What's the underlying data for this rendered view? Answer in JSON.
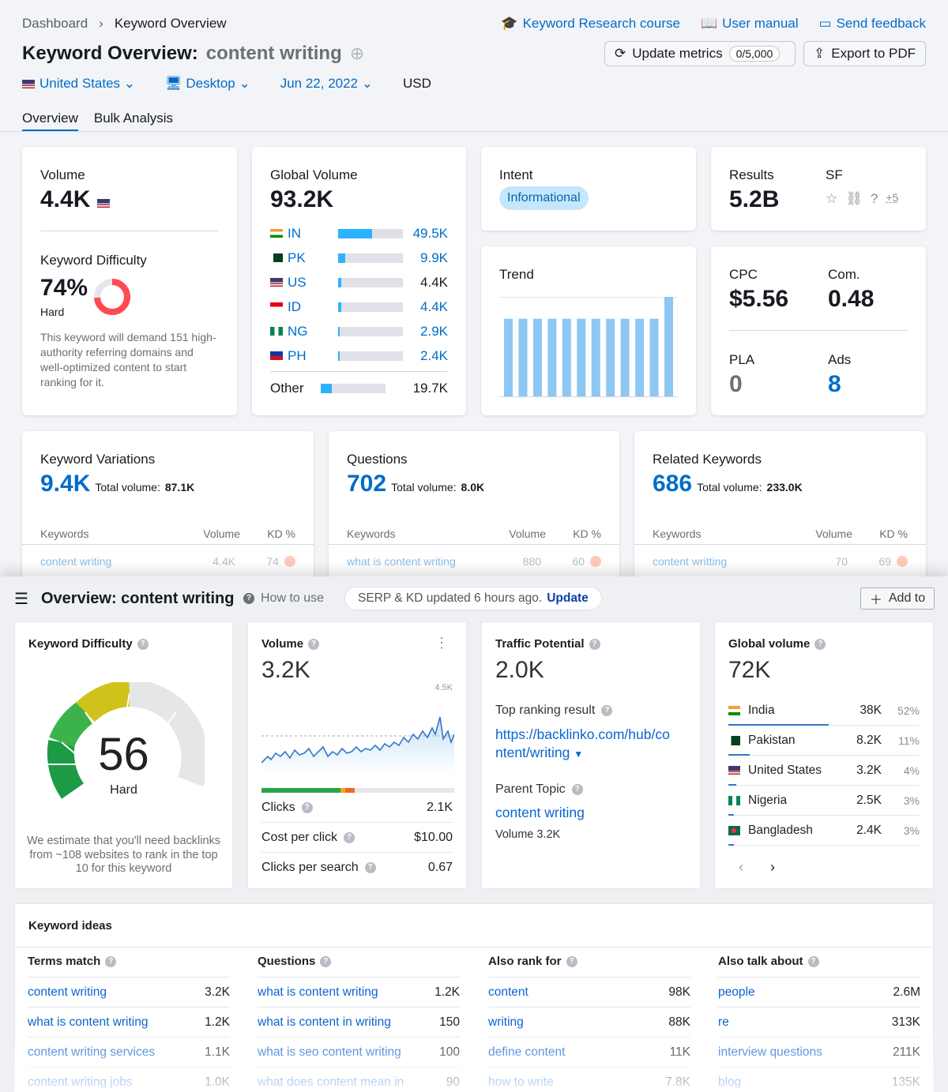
{
  "breadcrumb": {
    "home": "Dashboard",
    "current": "Keyword Overview"
  },
  "toplinks": {
    "course": "Keyword Research course",
    "manual": "User manual",
    "feedback": "Send feedback"
  },
  "title": {
    "label": "Keyword Overview:",
    "keyword": "content writing"
  },
  "buttons": {
    "update": "Update metrics",
    "update_count": "0/5,000",
    "export": "Export to PDF"
  },
  "filters": {
    "country": "United States",
    "device": "Desktop",
    "date": "Jun 22, 2022",
    "currency": "USD"
  },
  "tabs": [
    "Overview",
    "Bulk Analysis"
  ],
  "volume": {
    "label": "Volume",
    "value": "4.4K"
  },
  "kd": {
    "label": "Keyword Difficulty",
    "value": "74%",
    "level": "Hard",
    "percent": 74,
    "desc": "This keyword will demand 151 high-authority referring domains and well-optimized content to start ranking for it."
  },
  "global_volume": {
    "label": "Global Volume",
    "value": "93.2K",
    "rows": [
      {
        "cc": "IN",
        "v": "49.5K",
        "pct": 53
      },
      {
        "cc": "PK",
        "v": "9.9K",
        "pct": 11
      },
      {
        "cc": "US",
        "v": "4.4K",
        "pct": 5
      },
      {
        "cc": "ID",
        "v": "4.4K",
        "pct": 5
      },
      {
        "cc": "NG",
        "v": "2.9K",
        "pct": 3
      },
      {
        "cc": "PH",
        "v": "2.4K",
        "pct": 3
      }
    ],
    "other_label": "Other",
    "other_value": "19.7K",
    "other_pct": 21
  },
  "intent": {
    "label": "Intent",
    "value": "Informational"
  },
  "results": {
    "label": "Results",
    "value": "5.2B",
    "sf_label": "SF",
    "sf_more": "+5"
  },
  "trend": {
    "label": "Trend",
    "values": [
      0.78,
      0.78,
      0.78,
      0.78,
      0.78,
      0.78,
      0.78,
      0.78,
      0.78,
      0.78,
      0.78,
      1.0
    ]
  },
  "cpc": {
    "label": "CPC",
    "value": "$5.56",
    "com_label": "Com.",
    "com_value": "0.48",
    "pla_label": "PLA",
    "pla_value": "0",
    "ads_label": "Ads",
    "ads_value": "8"
  },
  "variations": {
    "label": "Keyword Variations",
    "value": "9.4K",
    "total_label": "Total volume:",
    "total": "87.1K",
    "kw": "content writing",
    "vol": "4.4K",
    "kd": "74"
  },
  "questions": {
    "label": "Questions",
    "value": "702",
    "total_label": "Total volume:",
    "total": "8.0K",
    "kw": "what is content writing",
    "vol": "880",
    "kd": "60"
  },
  "related": {
    "label": "Related Keywords",
    "value": "686",
    "total_label": "Total volume:",
    "total": "233.0K",
    "kw": "content writting",
    "vol": "70",
    "kd": "69"
  },
  "table_headers": {
    "kw": "Keywords",
    "vol": "Volume",
    "kd": "KD %"
  },
  "ahrefs": {
    "title": "Overview: content writing",
    "how": "How to use",
    "serp": "SERP & KD updated 6 hours ago.",
    "update": "Update",
    "add": "Add to",
    "kd": {
      "label": "Keyword Difficulty",
      "value": "56",
      "level": "Hard",
      "desc": "We estimate that you'll need backlinks from ~108 websites to rank in the top 10 for this keyword"
    },
    "volume": {
      "label": "Volume",
      "value": "3.2K",
      "max": "4.5K",
      "clicks_label": "Clicks",
      "clicks": "2.1K",
      "cpc_label": "Cost per click",
      "cpc": "$10.00",
      "cps_label": "Clicks per search",
      "cps": "0.67"
    },
    "traffic": {
      "label": "Traffic Potential",
      "value": "2.0K",
      "top_label": "Top ranking result",
      "top_url": "https://backlinko.com/hub/content/writing",
      "top_url_1": "https://backlinko.com/hub/co",
      "top_url_2": "ntent/writing",
      "parent_label": "Parent Topic",
      "parent": "content writing",
      "parent_vol": "Volume 3.2K"
    },
    "global": {
      "label": "Global volume",
      "value": "72K",
      "rows": [
        {
          "country": "India",
          "v": "38K",
          "p": "52%",
          "bar": 52
        },
        {
          "country": "Pakistan",
          "v": "8.2K",
          "p": "11%",
          "bar": 11
        },
        {
          "country": "United States",
          "v": "3.2K",
          "p": "4%",
          "bar": 4
        },
        {
          "country": "Nigeria",
          "v": "2.5K",
          "p": "3%",
          "bar": 3
        },
        {
          "country": "Bangladesh",
          "v": "2.4K",
          "p": "3%",
          "bar": 3
        }
      ]
    },
    "ideas": {
      "label": "Keyword ideas",
      "cols": [
        {
          "h": "Terms match",
          "rows": [
            [
              "content writing",
              "3.2K"
            ],
            [
              "what is content writing",
              "1.2K"
            ],
            [
              "content writing services",
              "1.1K"
            ],
            [
              "content writing jobs",
              "1.0K"
            ]
          ]
        },
        {
          "h": "Questions",
          "rows": [
            [
              "what is content writing",
              "1.2K"
            ],
            [
              "what is content in writing",
              "150"
            ],
            [
              "what is seo content writing",
              "100"
            ],
            [
              "what does content mean in",
              "90"
            ]
          ]
        },
        {
          "h": "Also rank for",
          "rows": [
            [
              "content",
              "98K"
            ],
            [
              "writing",
              "88K"
            ],
            [
              "define content",
              "11K"
            ],
            [
              "how to write",
              "7.8K"
            ]
          ]
        },
        {
          "h": "Also talk about",
          "rows": [
            [
              "people",
              "2.6M"
            ],
            [
              "re",
              "313K"
            ],
            [
              "interview questions",
              "211K"
            ],
            [
              "blog",
              "135K"
            ]
          ]
        }
      ]
    }
  },
  "colors": {
    "accent": "#006dca",
    "bar": "#2bb3ff",
    "trend": "#8cc8f3",
    "kd_red": "#ff4953"
  }
}
